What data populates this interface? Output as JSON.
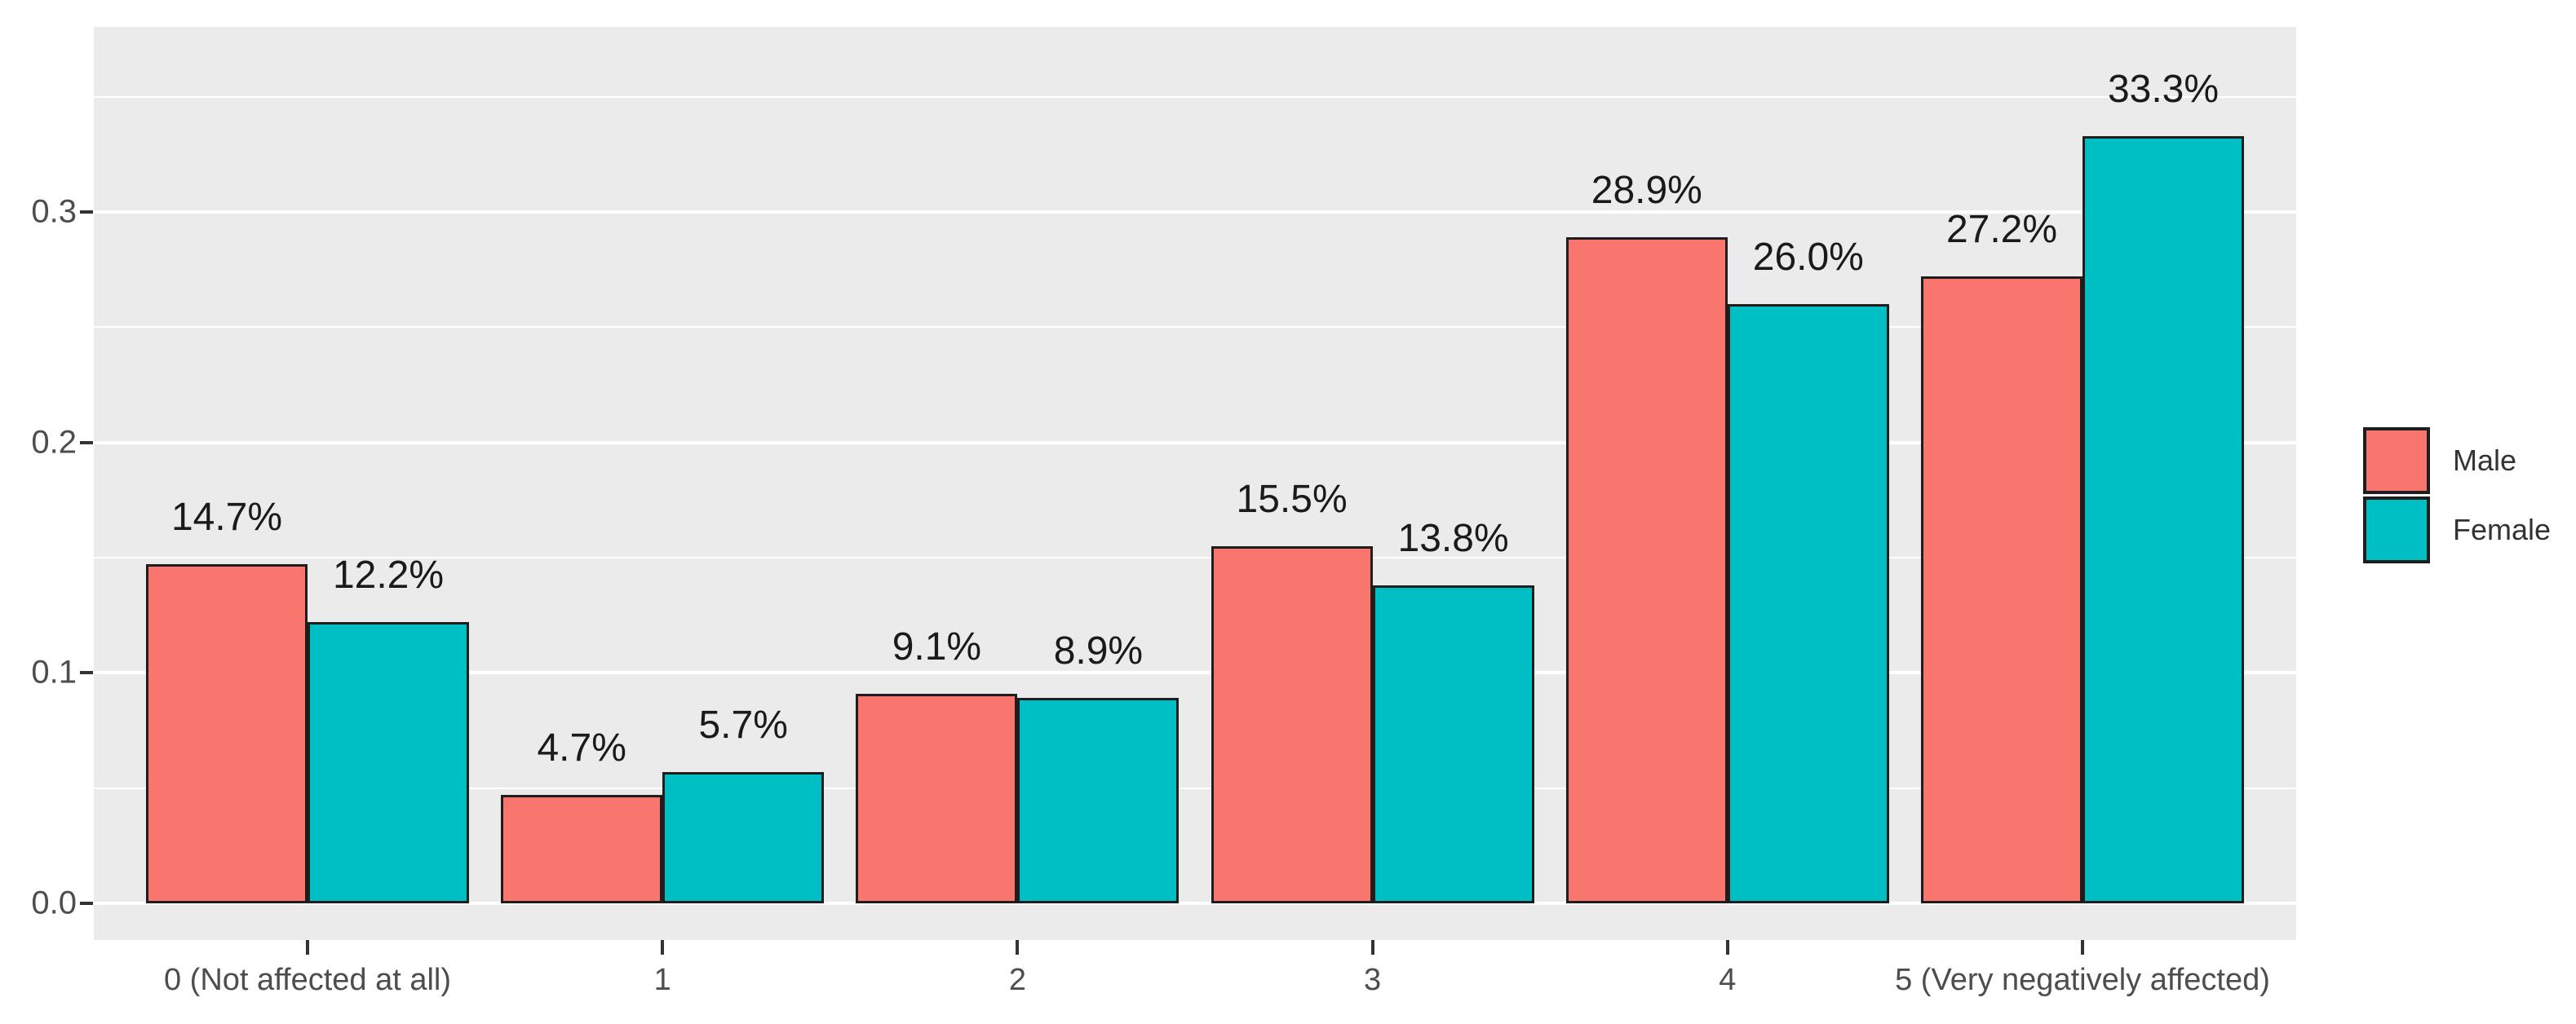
{
  "chart_data": {
    "type": "bar",
    "title": "",
    "xlabel": "",
    "ylabel": "",
    "categories": [
      "0 (Not affected at all)",
      "1",
      "2",
      "3",
      "4",
      "5 (Very negatively affected)"
    ],
    "series": [
      {
        "name": "Male",
        "color": "#F8766D",
        "values": [
          0.147,
          0.047,
          0.091,
          0.155,
          0.289,
          0.272
        ],
        "labels": [
          "14.7%",
          "4.7%",
          "9.1%",
          "15.5%",
          "28.9%",
          "27.2%"
        ]
      },
      {
        "name": "Female",
        "color": "#00BFC4",
        "values": [
          0.122,
          0.057,
          0.089,
          0.138,
          0.26,
          0.333
        ],
        "labels": [
          "12.2%",
          "5.7%",
          "8.9%",
          "13.8%",
          "26.0%",
          "33.3%"
        ]
      }
    ],
    "y_axis": {
      "tick_labels": [
        "0.0",
        "0.1",
        "0.2",
        "0.3"
      ],
      "tick_values": [
        0.0,
        0.1,
        0.2,
        0.3
      ],
      "minor_tick_values": [
        0.05,
        0.15,
        0.25,
        0.35
      ],
      "ylim": [
        0,
        0.382
      ],
      "grid": "on"
    },
    "legend": {
      "position": "right",
      "entries": [
        {
          "label": "Male",
          "color": "#F8766D"
        },
        {
          "label": "Female",
          "color": "#00BFC4"
        }
      ]
    },
    "style": {
      "panel_background": "#EBEBEB",
      "grid_color": "#FFFFFF",
      "bar_stroke": "#1E1E1E",
      "axis_text_color": "#4D4D4D",
      "value_label_color": "#1A1A1A"
    }
  }
}
